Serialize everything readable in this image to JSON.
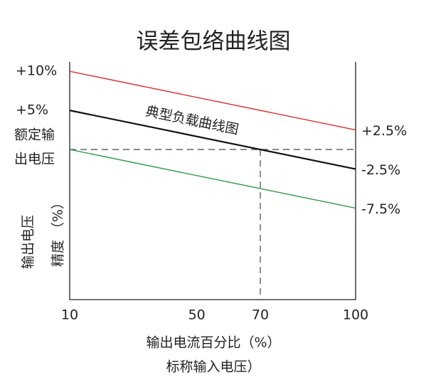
{
  "chart_data": {
    "type": "line",
    "title": "误差包络曲线图",
    "x": [
      10,
      100
    ],
    "series": [
      {
        "color": "#d9302c",
        "values": [
          10,
          2.5
        ]
      },
      {
        "color": "#111111",
        "values": [
          5,
          -2.5
        ]
      },
      {
        "color": "#2e9a4a",
        "values": [
          0,
          -7.5
        ]
      }
    ],
    "xlim": [
      10,
      100
    ],
    "xticks": [
      10,
      50,
      70,
      100
    ],
    "ylim": [
      -19.2,
      11.2
    ],
    "yticks": [
      {
        "value": 10,
        "label": "+10%"
      },
      {
        "value": 5,
        "label": "+5%"
      },
      {
        "value": 0,
        "label": [
          "额定输",
          "出电压"
        ]
      }
    ],
    "y2lim": [
      -19.2,
      11.2
    ],
    "y2ticks": [
      {
        "value": 2.5,
        "label": "+2.5%"
      },
      {
        "value": -2.5,
        "label": "-2.5%"
      },
      {
        "value": -7.5,
        "label": "-7.5%"
      }
    ],
    "reference_lines": {
      "y": 0,
      "x": 70
    },
    "annotation": "典型负载曲线图",
    "ylabel": [
      "输出电压",
      "精度 （%）"
    ],
    "xlabel": [
      "输出电流百分比（%）",
      "标称输入电压）"
    ]
  }
}
